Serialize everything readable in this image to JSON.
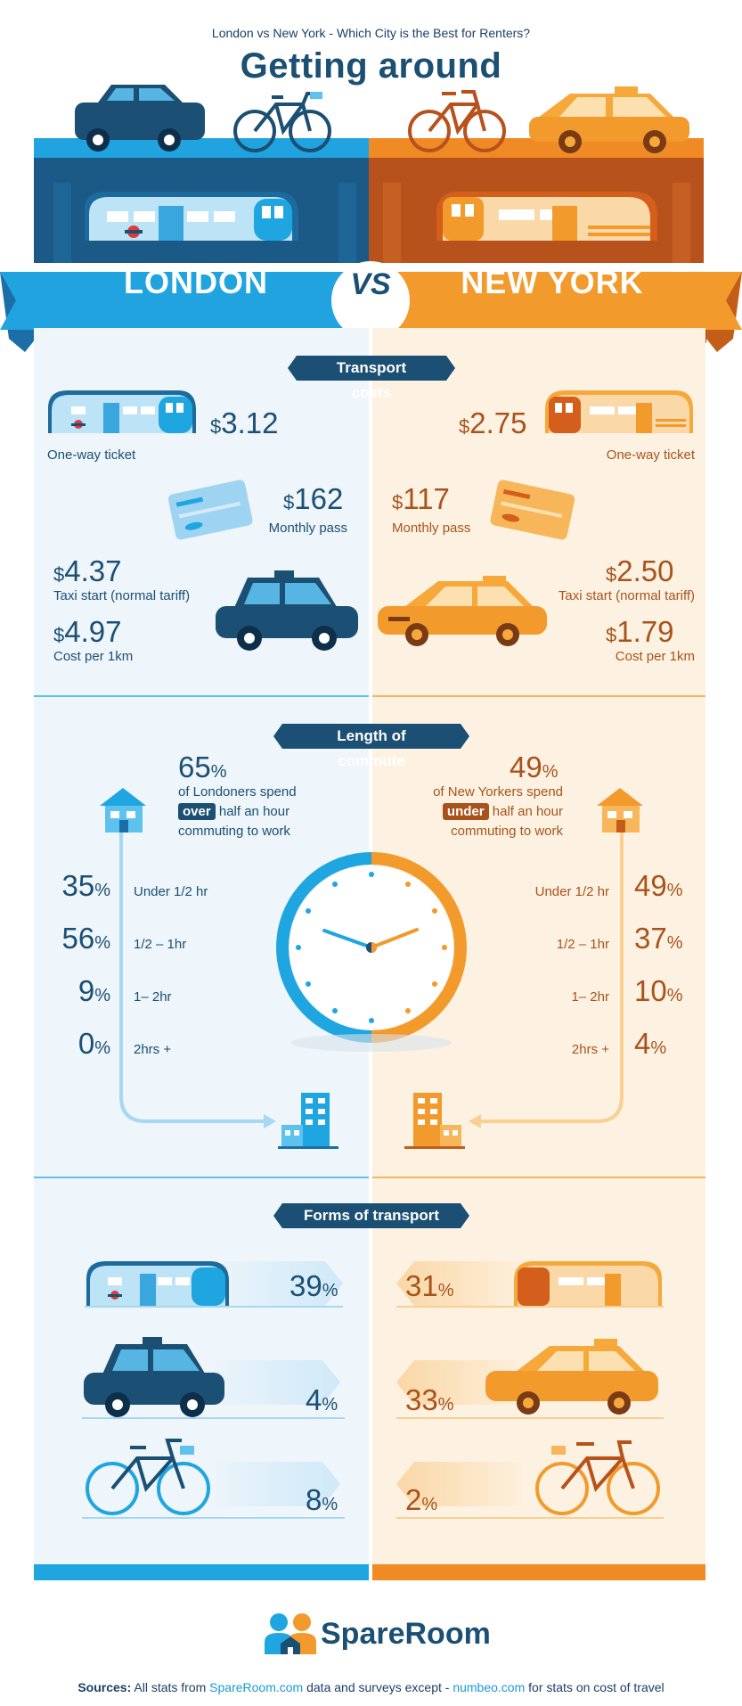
{
  "header": {
    "subtitle": "London vs New York - Which City is the Best for Renters?",
    "title": "Getting around"
  },
  "banner": {
    "left": "LONDON",
    "vs": "VS",
    "right": "NEW YORK"
  },
  "colors": {
    "blue": "#1b4f73",
    "light_blue": "#1fa6e0",
    "orange": "#f39a2c",
    "dark_orange": "#a8531b"
  },
  "transport_costs": {
    "heading": "Transport costs",
    "london": {
      "ticket_value": "3.12",
      "ticket_label": "One-way ticket",
      "pass_value": "162",
      "pass_label": "Monthly pass",
      "taxi_value": "4.37",
      "taxi_label": "Taxi start (normal tariff)",
      "km_value": "4.97",
      "km_label": "Cost per 1km"
    },
    "newyork": {
      "ticket_value": "2.75",
      "ticket_label": "One-way ticket",
      "pass_value": "117",
      "pass_label": "Monthly pass",
      "taxi_value": "2.50",
      "taxi_label": "Taxi start (normal tariff)",
      "km_value": "1.79",
      "km_label": "Cost per 1km"
    },
    "currency": "$"
  },
  "commute": {
    "heading": "Length of commute",
    "london": {
      "headline_value": "65",
      "line1": "of Londoners spend",
      "tag": "over",
      "line2": "half an hour",
      "line3": "commuting to work",
      "rows": [
        {
          "value": "35",
          "label": "Under 1/2 hr"
        },
        {
          "value": "56",
          "label": "1/2 – 1hr"
        },
        {
          "value": "9",
          "label": "1– 2hr"
        },
        {
          "value": "0",
          "label": "2hrs +"
        }
      ]
    },
    "newyork": {
      "headline_value": "49",
      "line1": "of New Yorkers spend",
      "tag": "under",
      "line2": "half an hour",
      "line3": "commuting to work",
      "rows": [
        {
          "value": "49",
          "label": "Under 1/2 hr"
        },
        {
          "value": "37",
          "label": "1/2 – 1hr"
        },
        {
          "value": "10",
          "label": "1– 2hr"
        },
        {
          "value": "4",
          "label": "2hrs +"
        }
      ]
    },
    "pct": "%"
  },
  "forms": {
    "heading": "Forms of transport",
    "london": [
      {
        "mode": "train",
        "value": "39"
      },
      {
        "mode": "taxi",
        "value": "4"
      },
      {
        "mode": "bicycle",
        "value": "8"
      }
    ],
    "newyork": [
      {
        "mode": "train",
        "value": "31"
      },
      {
        "mode": "taxi",
        "value": "33"
      },
      {
        "mode": "bicycle",
        "value": "2"
      }
    ]
  },
  "footer": {
    "brand": "SpareRoom",
    "sources_label": "Sources:",
    "sources_text1": "All stats from",
    "sources_link1": "SpareRoom.com",
    "sources_text2": "data and surveys except -",
    "sources_link2": "numbeo.com",
    "sources_text3": "for stats on cost of travel"
  }
}
